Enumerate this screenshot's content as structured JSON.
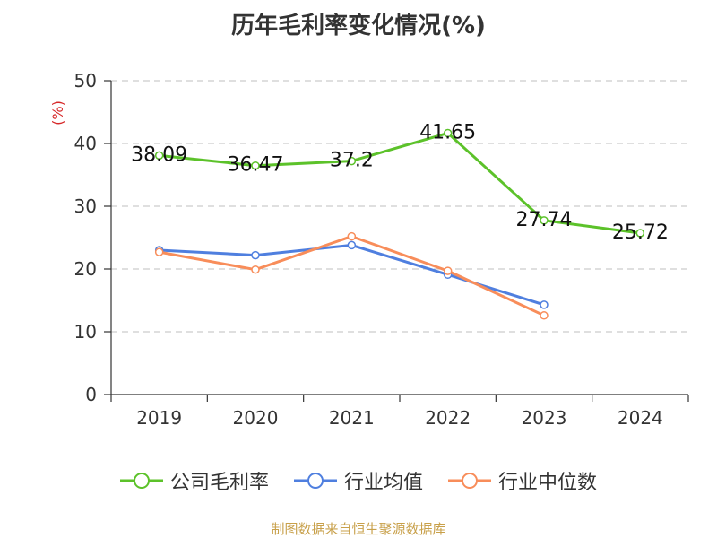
{
  "title": "历年毛利率变化情况(%)",
  "source": "制图数据来自恒生聚源数据库",
  "colors": {
    "green": "#5cc22a",
    "blue": "#4f7fdf",
    "orange": "#f88d5a",
    "grid": "#cccccc",
    "axis": "#333333",
    "unit": "#d62728"
  },
  "chart_data": {
    "type": "line",
    "title": "历年毛利率变化情况(%)",
    "xlabel": "",
    "ylabel": "(%)",
    "categories": [
      "2019",
      "2020",
      "2021",
      "2022",
      "2023",
      "2024"
    ],
    "ylim": [
      0,
      50
    ],
    "yticks": [
      0,
      10,
      20,
      30,
      40,
      50
    ],
    "grid": true,
    "legend_position": "bottom",
    "series": [
      {
        "name": "公司毛利率",
        "color_key": "green",
        "values": [
          38.09,
          36.47,
          37.2,
          41.65,
          27.74,
          25.72
        ],
        "labels": [
          "38.09",
          "36.47",
          "37.2",
          "41.65",
          "27.74",
          "25.72"
        ]
      },
      {
        "name": "行业均值",
        "color_key": "blue",
        "values": [
          23.0,
          22.2,
          23.8,
          19.1,
          14.3,
          null
        ],
        "labels": []
      },
      {
        "name": "行业中位数",
        "color_key": "orange",
        "values": [
          22.7,
          19.9,
          25.2,
          19.7,
          12.6,
          null
        ],
        "labels": []
      }
    ]
  }
}
